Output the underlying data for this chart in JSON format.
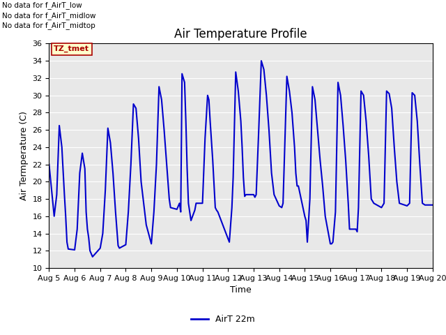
{
  "title": "Air Temperature Profile",
  "xlabel": "Time",
  "ylabel": "Air Termperature (C)",
  "ylim": [
    10,
    36
  ],
  "yticks": [
    10,
    12,
    14,
    16,
    18,
    20,
    22,
    24,
    26,
    28,
    30,
    32,
    34,
    36
  ],
  "line_color": "#0000cc",
  "line_width": 1.5,
  "legend_label": "AirT 22m",
  "bg_color": "#e8e8e8",
  "annotations": [
    "No data for f_AirT_low",
    "No data for f_AirT_midlow",
    "No data for f_AirT_midtop"
  ],
  "tz_label": "TZ_tmet",
  "x_labels": [
    "Aug 5",
    "Aug 6",
    "Aug 7",
    "Aug 8",
    "Aug 9",
    "Aug 10",
    "Aug 11",
    "Aug 12",
    "Aug 13",
    "Aug 14",
    "Aug 15",
    "Aug 16",
    "Aug 17",
    "Aug 18",
    "Aug 19",
    "Aug 20"
  ],
  "time_series": [
    [
      0.0,
      22.0
    ],
    [
      0.1,
      19.0
    ],
    [
      0.2,
      16.0
    ],
    [
      0.3,
      18.5
    ],
    [
      0.4,
      26.5
    ],
    [
      0.5,
      24.0
    ],
    [
      0.6,
      18.5
    ],
    [
      0.65,
      16.0
    ],
    [
      0.7,
      13.0
    ],
    [
      0.75,
      12.2
    ],
    [
      1.0,
      12.1
    ],
    [
      1.1,
      14.5
    ],
    [
      1.2,
      21.0
    ],
    [
      1.3,
      23.3
    ],
    [
      1.4,
      21.5
    ],
    [
      1.45,
      16.5
    ],
    [
      1.5,
      14.5
    ],
    [
      1.55,
      13.5
    ],
    [
      1.6,
      12.0
    ],
    [
      1.7,
      11.3
    ],
    [
      2.0,
      12.3
    ],
    [
      2.1,
      14.0
    ],
    [
      2.2,
      19.0
    ],
    [
      2.3,
      26.2
    ],
    [
      2.4,
      24.5
    ],
    [
      2.5,
      21.0
    ],
    [
      2.6,
      16.5
    ],
    [
      2.65,
      14.5
    ],
    [
      2.7,
      12.6
    ],
    [
      2.75,
      12.3
    ],
    [
      3.0,
      12.7
    ],
    [
      3.1,
      16.5
    ],
    [
      3.2,
      22.0
    ],
    [
      3.3,
      29.0
    ],
    [
      3.4,
      28.5
    ],
    [
      3.5,
      25.0
    ],
    [
      3.6,
      20.0
    ],
    [
      3.7,
      17.5
    ],
    [
      3.8,
      15.0
    ],
    [
      4.0,
      12.8
    ],
    [
      4.1,
      16.5
    ],
    [
      4.2,
      22.0
    ],
    [
      4.3,
      31.0
    ],
    [
      4.4,
      29.5
    ],
    [
      4.5,
      26.0
    ],
    [
      4.6,
      22.0
    ],
    [
      4.7,
      18.0
    ],
    [
      4.75,
      17.0
    ],
    [
      5.0,
      16.8
    ],
    [
      5.1,
      17.5
    ],
    [
      5.15,
      16.5
    ],
    [
      5.2,
      32.5
    ],
    [
      5.3,
      31.5
    ],
    [
      5.35,
      27.0
    ],
    [
      5.4,
      21.5
    ],
    [
      5.45,
      17.5
    ],
    [
      5.5,
      16.5
    ],
    [
      5.55,
      15.5
    ],
    [
      5.7,
      16.7
    ],
    [
      5.75,
      17.5
    ],
    [
      6.0,
      17.5
    ],
    [
      6.1,
      25.0
    ],
    [
      6.2,
      30.0
    ],
    [
      6.25,
      29.5
    ],
    [
      6.3,
      27.0
    ],
    [
      6.4,
      22.5
    ],
    [
      6.5,
      17.0
    ],
    [
      6.55,
      16.7
    ],
    [
      6.6,
      16.5
    ],
    [
      7.0,
      13.4
    ],
    [
      7.05,
      13.0
    ],
    [
      7.15,
      17.0
    ],
    [
      7.2,
      20.5
    ],
    [
      7.3,
      32.7
    ],
    [
      7.4,
      30.5
    ],
    [
      7.5,
      27.0
    ],
    [
      7.55,
      24.0
    ],
    [
      7.6,
      20.5
    ],
    [
      7.65,
      18.3
    ],
    [
      7.7,
      18.5
    ],
    [
      8.0,
      18.5
    ],
    [
      8.05,
      18.2
    ],
    [
      8.1,
      18.5
    ],
    [
      8.2,
      26.0
    ],
    [
      8.3,
      34.0
    ],
    [
      8.4,
      33.0
    ],
    [
      8.5,
      30.0
    ],
    [
      8.6,
      26.0
    ],
    [
      8.7,
      21.0
    ],
    [
      8.8,
      18.5
    ],
    [
      9.0,
      17.2
    ],
    [
      9.1,
      17.0
    ],
    [
      9.15,
      17.5
    ],
    [
      9.2,
      22.5
    ],
    [
      9.3,
      32.2
    ],
    [
      9.4,
      30.5
    ],
    [
      9.5,
      28.0
    ],
    [
      9.6,
      24.0
    ],
    [
      9.65,
      21.0
    ],
    [
      9.7,
      19.5
    ],
    [
      9.75,
      19.5
    ],
    [
      10.0,
      16.0
    ],
    [
      10.05,
      15.5
    ],
    [
      10.1,
      13.0
    ],
    [
      10.2,
      18.0
    ],
    [
      10.3,
      31.0
    ],
    [
      10.4,
      29.5
    ],
    [
      10.5,
      26.0
    ],
    [
      10.6,
      22.5
    ],
    [
      10.7,
      19.5
    ],
    [
      10.8,
      16.0
    ],
    [
      11.0,
      12.8
    ],
    [
      11.05,
      12.8
    ],
    [
      11.1,
      13.0
    ],
    [
      11.2,
      16.5
    ],
    [
      11.3,
      31.5
    ],
    [
      11.4,
      30.0
    ],
    [
      11.5,
      26.5
    ],
    [
      11.6,
      22.5
    ],
    [
      11.7,
      17.5
    ],
    [
      11.75,
      14.5
    ],
    [
      12.0,
      14.5
    ],
    [
      12.05,
      14.2
    ],
    [
      12.1,
      17.0
    ],
    [
      12.2,
      30.5
    ],
    [
      12.3,
      30.0
    ],
    [
      12.4,
      27.0
    ],
    [
      12.5,
      23.0
    ],
    [
      12.6,
      18.0
    ],
    [
      12.7,
      17.5
    ],
    [
      13.0,
      17.0
    ],
    [
      13.1,
      17.5
    ],
    [
      13.2,
      30.5
    ],
    [
      13.3,
      30.2
    ],
    [
      13.4,
      28.5
    ],
    [
      13.5,
      24.0
    ],
    [
      13.6,
      20.0
    ],
    [
      13.7,
      17.5
    ],
    [
      14.0,
      17.2
    ],
    [
      14.1,
      17.5
    ],
    [
      14.2,
      30.3
    ],
    [
      14.3,
      30.0
    ],
    [
      14.4,
      27.0
    ],
    [
      14.5,
      22.0
    ],
    [
      14.6,
      17.5
    ],
    [
      14.7,
      17.3
    ],
    [
      15.0,
      17.3
    ]
  ]
}
